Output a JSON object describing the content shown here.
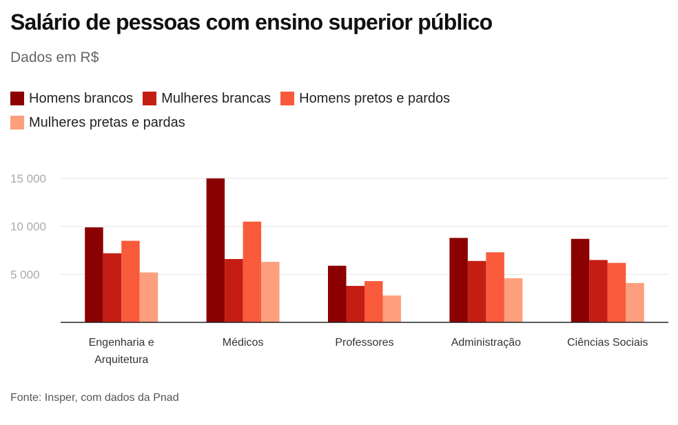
{
  "chart_data": {
    "type": "bar",
    "title": "Salário de pessoas com ensino superior público",
    "subtitle": "Dados em R$",
    "source": "Fonte: Insper, com dados da Pnad",
    "categories": [
      [
        "Engenharia e",
        "Arquitetura"
      ],
      [
        "Médicos"
      ],
      [
        "Professores"
      ],
      [
        "Administração"
      ],
      [
        "Ciências Sociais"
      ]
    ],
    "series": [
      {
        "name": "Homens brancos",
        "color": "#8b0000",
        "values": [
          9900,
          15000,
          5900,
          8800,
          8700
        ]
      },
      {
        "name": "Mulheres brancas",
        "color": "#c41e14",
        "values": [
          7200,
          6600,
          3800,
          6400,
          6500
        ]
      },
      {
        "name": "Homens pretos e pardos",
        "color": "#fa5a3c",
        "values": [
          8500,
          10500,
          4300,
          7300,
          6200
        ]
      },
      {
        "name": "Mulheres pretas e pardas",
        "color": "#fd9f7d",
        "values": [
          5200,
          6300,
          2800,
          4600,
          4100
        ]
      }
    ],
    "yticks": [
      {
        "value": 5000,
        "label": "5 000"
      },
      {
        "value": 10000,
        "label": "10 000"
      },
      {
        "value": 15000,
        "label": "15 000"
      }
    ],
    "ylim": [
      0,
      15000
    ],
    "grid": true,
    "legend_position": "top-left"
  }
}
